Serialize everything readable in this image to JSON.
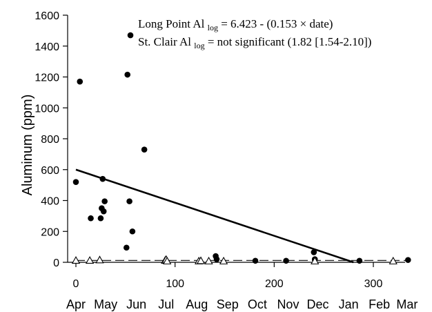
{
  "chart_data": {
    "type": "scatter",
    "ylabel": "Aluminum (ppm)",
    "xlim": [
      0,
      335
    ],
    "ylim": [
      0,
      1600
    ],
    "xticks": [
      0,
      100,
      200,
      300
    ],
    "yticks": [
      0,
      200,
      400,
      600,
      800,
      1000,
      1200,
      1400,
      1600
    ],
    "month_labels": [
      "Apr",
      "May",
      "Jun",
      "Jul",
      "Aug",
      "Sep",
      "Oct",
      "Nov",
      "Dec",
      "Jan",
      "Feb",
      "Mar"
    ],
    "month_positions": [
      0,
      30,
      61,
      91,
      122,
      153,
      183,
      214,
      244,
      275,
      306,
      334
    ],
    "annotations": [
      {
        "text": "Long Point Al",
        "sub": "log",
        "rest": " = 6.423 - (0.153 × date)"
      },
      {
        "text": "St. Clair Al",
        "sub": "log",
        "rest": " = not significant (1.82 [1.54-2.10])"
      }
    ],
    "series": [
      {
        "marker": "filled-circle",
        "color": "#000000",
        "points": [
          [
            0,
            520
          ],
          [
            4,
            1170
          ],
          [
            15,
            285
          ],
          [
            25,
            285
          ],
          [
            26,
            350
          ],
          [
            27,
            540
          ],
          [
            28,
            330
          ],
          [
            29,
            395
          ],
          [
            51,
            95
          ],
          [
            52,
            1215
          ],
          [
            54,
            395
          ],
          [
            55,
            1470
          ],
          [
            57,
            200
          ],
          [
            69,
            730
          ],
          [
            141,
            40
          ],
          [
            142,
            20
          ],
          [
            181,
            10
          ],
          [
            212,
            10
          ],
          [
            240,
            65
          ],
          [
            241,
            20
          ],
          [
            286,
            10
          ],
          [
            335,
            15
          ]
        ]
      },
      {
        "marker": "open-triangle",
        "color": "#000000",
        "points": [
          [
            0,
            12
          ],
          [
            14,
            12
          ],
          [
            24,
            15
          ],
          [
            90,
            12
          ],
          [
            91,
            18
          ],
          [
            92,
            8
          ],
          [
            124,
            8
          ],
          [
            126,
            10
          ],
          [
            134,
            8
          ],
          [
            149,
            8
          ],
          [
            241,
            8
          ],
          [
            320,
            8
          ]
        ]
      }
    ],
    "fit_lines": [
      {
        "style": "solid",
        "from": [
          0,
          600
        ],
        "to": [
          280,
          0
        ]
      },
      {
        "style": "dashed",
        "from": [
          0,
          12
        ],
        "to": [
          335,
          12
        ]
      }
    ]
  }
}
